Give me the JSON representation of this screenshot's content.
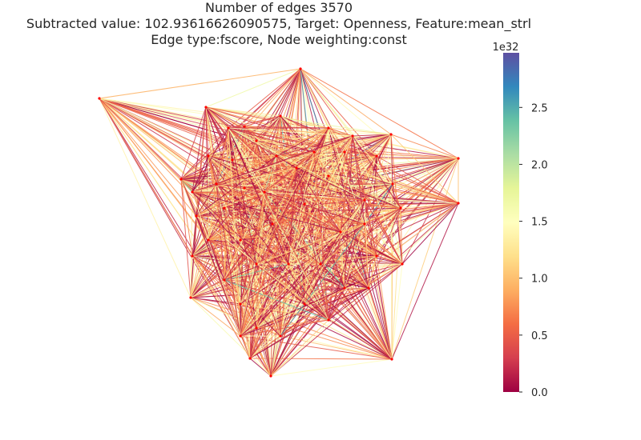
{
  "title": {
    "line1": "Number of edges 3570",
    "line2": "Subtracted value: 102.93616626090575, Target: Openness, Feature:mean_strl",
    "line3": "Edge type:fscore, Node weighting:const"
  },
  "colorbar": {
    "exponent_label": "1e32",
    "ticks": [
      {
        "label": "0.0",
        "value": 0.0
      },
      {
        "label": "0.5",
        "value": 0.5
      },
      {
        "label": "1.0",
        "value": 1.0
      },
      {
        "label": "1.5",
        "value": 1.5
      },
      {
        "label": "2.0",
        "value": 2.0
      },
      {
        "label": "2.5",
        "value": 2.5
      }
    ],
    "vmin": 0.0,
    "vmax": 2.98,
    "colormap": "Spectral",
    "stops": [
      "#9e0142",
      "#d53e4f",
      "#f46d43",
      "#fdae61",
      "#fee08b",
      "#ffffbf",
      "#e6f598",
      "#abdda4",
      "#66c2a5",
      "#3288bd",
      "#5e4fa2"
    ]
  },
  "graph": {
    "edge_count": 3570,
    "node_color": "#ff0000"
  }
}
